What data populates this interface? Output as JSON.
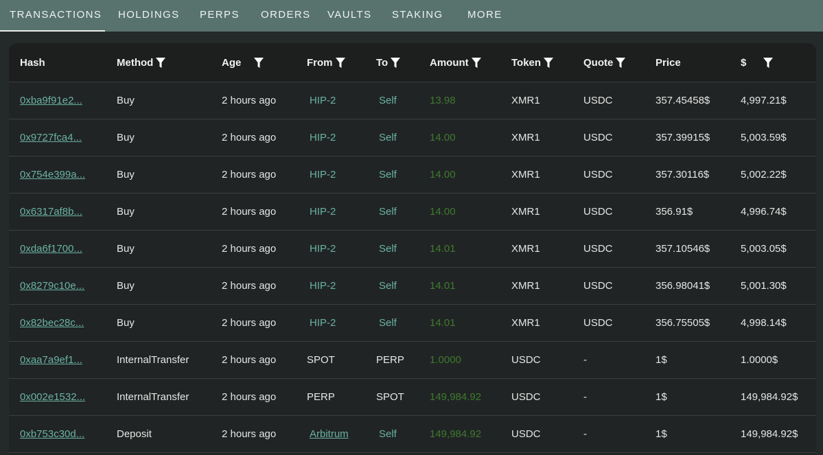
{
  "tabs": [
    {
      "label": "TRANSACTIONS",
      "active": true
    },
    {
      "label": "HOLDINGS"
    },
    {
      "label": "PERPS"
    },
    {
      "label": "ORDERS"
    },
    {
      "label": "VAULTS"
    },
    {
      "label": "STAKING"
    },
    {
      "label": "MORE"
    }
  ],
  "columns": [
    {
      "label": "Hash",
      "filter": false
    },
    {
      "label": "Method",
      "filter": true
    },
    {
      "label": "Age",
      "filter": true
    },
    {
      "label": "From",
      "filter": true
    },
    {
      "label": "To",
      "filter": true
    },
    {
      "label": "Amount",
      "filter": true
    },
    {
      "label": "Token",
      "filter": true
    },
    {
      "label": "Quote",
      "filter": true
    },
    {
      "label": "Price",
      "filter": false
    },
    {
      "label": "$",
      "filter": true
    }
  ],
  "colors": {
    "tab_bar": "#58736d",
    "link": "#69b3a4",
    "amount": "#3e7a30"
  },
  "rows": [
    {
      "hash": "0xba9f91e2...",
      "method": "Buy",
      "age": "2 hours ago",
      "from": "HIP-2",
      "to": "Self",
      "amount": "13.98",
      "token": "XMR1",
      "quote": "USDC",
      "price": "357.45458$",
      "usd": "4,997.21$"
    },
    {
      "hash": "0x9727fca4...",
      "method": "Buy",
      "age": "2 hours ago",
      "from": "HIP-2",
      "to": "Self",
      "amount": "14.00",
      "token": "XMR1",
      "quote": "USDC",
      "price": "357.39915$",
      "usd": "5,003.59$"
    },
    {
      "hash": "0x754e399a...",
      "method": "Buy",
      "age": "2 hours ago",
      "from": "HIP-2",
      "to": "Self",
      "amount": "14.00",
      "token": "XMR1",
      "quote": "USDC",
      "price": "357.30116$",
      "usd": "5,002.22$"
    },
    {
      "hash": "0x6317af8b...",
      "method": "Buy",
      "age": "2 hours ago",
      "from": "HIP-2",
      "to": "Self",
      "amount": "14.00",
      "token": "XMR1",
      "quote": "USDC",
      "price": "356.91$",
      "usd": "4,996.74$"
    },
    {
      "hash": "0xda6f1700...",
      "method": "Buy",
      "age": "2 hours ago",
      "from": "HIP-2",
      "to": "Self",
      "amount": "14.01",
      "token": "XMR1",
      "quote": "USDC",
      "price": "357.10546$",
      "usd": "5,003.05$"
    },
    {
      "hash": "0x8279c10e...",
      "method": "Buy",
      "age": "2 hours ago",
      "from": "HIP-2",
      "to": "Self",
      "amount": "14.01",
      "token": "XMR1",
      "quote": "USDC",
      "price": "356.98041$",
      "usd": "5,001.30$"
    },
    {
      "hash": "0x82bec28c...",
      "method": "Buy",
      "age": "2 hours ago",
      "from": "HIP-2",
      "to": "Self",
      "amount": "14.01",
      "token": "XMR1",
      "quote": "USDC",
      "price": "356.75505$",
      "usd": "4,998.14$"
    },
    {
      "hash": "0xaa7a9ef1...",
      "method": "InternalTransfer",
      "age": "2 hours ago",
      "from": "SPOT",
      "to": "PERP",
      "amount": "1.0000",
      "token": "USDC",
      "quote": "-",
      "price": "1$",
      "usd": "1.0000$"
    },
    {
      "hash": "0x002e1532...",
      "method": "InternalTransfer",
      "age": "2 hours ago",
      "from": "PERP",
      "to": "SPOT",
      "amount": "149,984.92",
      "token": "USDC",
      "quote": "-",
      "price": "1$",
      "usd": "149,984.92$"
    },
    {
      "hash": "0xb753c30d...",
      "method": "Deposit",
      "age": "2 hours ago",
      "from": "Arbitrum",
      "to": "Self",
      "amount": "149,984.92",
      "token": "USDC",
      "quote": "-",
      "price": "1$",
      "usd": "149,984.92$"
    }
  ]
}
